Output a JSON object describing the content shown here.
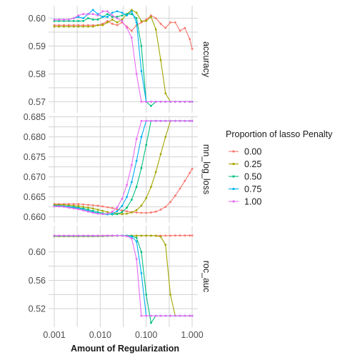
{
  "chart_data": {
    "type": "line",
    "xlabel": "Amount of Regularization",
    "x_scale": "log10",
    "x_ticks": [
      0.001,
      0.01,
      0.1,
      1.0
    ],
    "x_tick_labels": [
      "0.001",
      "0.010",
      "0.100",
      "1.000"
    ],
    "xlim": [
      0.001,
      1.0
    ],
    "grid": true,
    "legend": {
      "title": "Proportion of lasso Penalty",
      "position": "right",
      "entries": [
        "0.00",
        "0.25",
        "0.50",
        "0.75",
        "1.00"
      ]
    },
    "colors": [
      "#F8766D",
      "#A3A500",
      "#00BF7D",
      "#00B0F6",
      "#E76BF3"
    ],
    "x": [
      0.001,
      0.00127,
      0.00162,
      0.00207,
      0.00264,
      0.00336,
      0.00428,
      0.00546,
      0.00695,
      0.00886,
      0.01129,
      0.01438,
      0.01833,
      0.02336,
      0.02976,
      0.03793,
      0.04833,
      0.06158,
      0.07848,
      0.1,
      0.12743,
      0.16238,
      0.20691,
      0.26367,
      0.33598,
      0.42813,
      0.54556,
      0.69519,
      0.88587,
      1.0
    ],
    "panels": [
      {
        "strip": "accuracy",
        "ylim": [
          0.566,
          0.6045
        ],
        "y_ticks": [
          0.57,
          0.58,
          0.59,
          0.6
        ],
        "y_tick_labels": [
          "0.57",
          "0.58",
          "0.59",
          "0.60"
        ],
        "series": [
          {
            "name": "0.00",
            "values": [
              0.5975,
              0.5975,
              0.5975,
              0.5975,
              0.5975,
              0.5975,
              0.5975,
              0.5975,
              0.5975,
              0.5975,
              0.598,
              0.599,
              0.598,
              0.5975,
              0.5985,
              0.597,
              0.5955,
              0.5975,
              0.5985,
              0.5995,
              0.601,
              0.6,
              0.598,
              0.5965,
              0.5985,
              0.5985,
              0.5955,
              0.5965,
              0.5925,
              0.589
            ]
          },
          {
            "name": "0.25",
            "values": [
              0.597,
              0.597,
              0.597,
              0.597,
              0.597,
              0.597,
              0.597,
              0.597,
              0.597,
              0.5975,
              0.5975,
              0.5985,
              0.5995,
              0.5985,
              0.5995,
              0.6015,
              0.603,
              0.602,
              0.599,
              0.599,
              0.6005,
              0.596,
              0.585,
              0.573,
              0.57,
              0.57,
              0.57,
              0.57,
              0.57,
              0.57
            ]
          },
          {
            "name": "0.50",
            "values": [
              0.599,
              0.599,
              0.599,
              0.599,
              0.599,
              0.599,
              0.599,
              0.6,
              0.5995,
              0.5995,
              0.6005,
              0.6015,
              0.6005,
              0.6005,
              0.601,
              0.6015,
              0.6015,
              0.6,
              0.59,
              0.57,
              0.5685,
              0.57,
              0.57,
              0.57,
              0.57,
              0.57,
              0.57,
              0.57,
              0.57,
              0.57
            ]
          },
          {
            "name": "0.75",
            "values": [
              0.5995,
              0.5995,
              0.5995,
              0.5995,
              0.6,
              0.6005,
              0.6,
              0.6015,
              0.603,
              0.6015,
              0.6005,
              0.6005,
              0.602,
              0.6025,
              0.602,
              0.601,
              0.6025,
              0.5985,
              0.581,
              0.57,
              0.57,
              0.57,
              0.57,
              0.57,
              0.57,
              0.57,
              0.57,
              0.57,
              0.57,
              0.57
            ]
          },
          {
            "name": "1.00",
            "values": [
              0.5995,
              0.5995,
              0.5995,
              0.5995,
              0.6,
              0.601,
              0.6015,
              0.6015,
              0.6015,
              0.601,
              0.6025,
              0.6025,
              0.601,
              0.6,
              0.599,
              0.5965,
              0.593,
              0.58,
              0.57,
              0.57,
              0.57,
              0.57,
              0.57,
              0.57,
              0.57,
              0.57,
              0.57,
              0.57,
              0.57,
              0.57
            ]
          }
        ]
      },
      {
        "strip": "mn_log_loss",
        "ylim": [
          0.6585,
          0.6853
        ],
        "y_ticks": [
          0.66,
          0.665,
          0.67,
          0.675,
          0.68,
          0.685
        ],
        "y_tick_labels": [
          "0.660",
          "0.665",
          "0.670",
          "0.675",
          "0.680",
          "0.685"
        ],
        "series": [
          {
            "name": "0.00",
            "values": [
              0.6632,
              0.6632,
              0.6632,
              0.6632,
              0.6632,
              0.6632,
              0.6631,
              0.663,
              0.6629,
              0.6628,
              0.6626,
              0.6624,
              0.6622,
              0.6619,
              0.6616,
              0.6614,
              0.6612,
              0.6611,
              0.661,
              0.661,
              0.6611,
              0.6613,
              0.6618,
              0.6625,
              0.6637,
              0.6653,
              0.6671,
              0.669,
              0.671,
              0.672
            ]
          },
          {
            "name": "0.25",
            "values": [
              0.663,
              0.663,
              0.663,
              0.6629,
              0.6628,
              0.6627,
              0.6625,
              0.6623,
              0.6621,
              0.6618,
              0.6615,
              0.6612,
              0.661,
              0.6608,
              0.6607,
              0.6608,
              0.6611,
              0.6617,
              0.6628,
              0.6647,
              0.6675,
              0.6712,
              0.6757,
              0.68,
              0.684,
              0.684,
              0.684,
              0.684,
              0.684,
              0.684
            ]
          },
          {
            "name": "0.50",
            "values": [
              0.6628,
              0.6628,
              0.6627,
              0.6626,
              0.6625,
              0.6623,
              0.6621,
              0.6618,
              0.6615,
              0.6612,
              0.6609,
              0.6607,
              0.6606,
              0.6607,
              0.6612,
              0.6623,
              0.6643,
              0.6675,
              0.6722,
              0.678,
              0.684,
              0.684,
              0.684,
              0.684,
              0.684,
              0.684,
              0.684,
              0.684,
              0.684,
              0.684
            ]
          },
          {
            "name": "0.75",
            "values": [
              0.6627,
              0.6627,
              0.6626,
              0.6625,
              0.6623,
              0.6621,
              0.6618,
              0.6615,
              0.6612,
              0.6609,
              0.6607,
              0.6606,
              0.6608,
              0.6614,
              0.6627,
              0.665,
              0.6687,
              0.674,
              0.68,
              0.684,
              0.684,
              0.684,
              0.684,
              0.684,
              0.684,
              0.684,
              0.684,
              0.684,
              0.684,
              0.684
            ]
          },
          {
            "name": "1.00",
            "values": [
              0.6626,
              0.6626,
              0.6625,
              0.6623,
              0.6621,
              0.6619,
              0.6616,
              0.6613,
              0.661,
              0.6608,
              0.6607,
              0.6608,
              0.6613,
              0.6624,
              0.6645,
              0.668,
              0.673,
              0.6795,
              0.684,
              0.684,
              0.684,
              0.684,
              0.684,
              0.684,
              0.684,
              0.684,
              0.684,
              0.684,
              0.684,
              0.684
            ]
          }
        ]
      },
      {
        "strip": "roc_auc",
        "ylim": [
          0.494,
          0.637
        ],
        "y_ticks": [
          0.52,
          0.56,
          0.6
        ],
        "y_tick_labels": [
          "0.52",
          "0.56",
          "0.60"
        ],
        "series": [
          {
            "name": "0.00",
            "values": [
              0.623,
              0.623,
              0.623,
              0.623,
              0.623,
              0.623,
              0.623,
              0.623,
              0.623,
              0.623,
              0.623,
              0.623,
              0.623,
              0.623,
              0.623,
              0.623,
              0.623,
              0.623,
              0.623,
              0.623,
              0.623,
              0.623,
              0.623,
              0.623,
              0.623,
              0.6232,
              0.6232,
              0.6232,
              0.6232,
              0.6232
            ]
          },
          {
            "name": "0.25",
            "values": [
              0.622,
              0.622,
              0.622,
              0.622,
              0.622,
              0.622,
              0.622,
              0.622,
              0.622,
              0.6221,
              0.6222,
              0.6224,
              0.6226,
              0.6228,
              0.6229,
              0.623,
              0.623,
              0.623,
              0.623,
              0.6231,
              0.623,
              0.6228,
              0.6215,
              0.61,
              0.54,
              0.51,
              0.51,
              0.51,
              0.51,
              0.51
            ]
          },
          {
            "name": "0.50",
            "values": [
              0.6225,
              0.6225,
              0.6225,
              0.6225,
              0.6225,
              0.6225,
              0.6225,
              0.6225,
              0.6225,
              0.6226,
              0.6227,
              0.6228,
              0.6229,
              0.623,
              0.623,
              0.623,
              0.6225,
              0.62,
              0.6,
              0.54,
              0.5,
              0.51,
              0.51,
              0.51,
              0.51,
              0.51,
              0.51,
              0.51,
              0.51,
              0.51
            ]
          },
          {
            "name": "0.75",
            "values": [
              0.6228,
              0.6228,
              0.6228,
              0.6228,
              0.6228,
              0.6228,
              0.6228,
              0.6228,
              0.6228,
              0.6228,
              0.6229,
              0.623,
              0.623,
              0.6231,
              0.623,
              0.6228,
              0.6215,
              0.615,
              0.57,
              0.51,
              0.51,
              0.51,
              0.51,
              0.51,
              0.51,
              0.51,
              0.51,
              0.51,
              0.51,
              0.51
            ]
          },
          {
            "name": "1.00",
            "values": [
              0.623,
              0.623,
              0.623,
              0.623,
              0.623,
              0.623,
              0.623,
              0.623,
              0.623,
              0.623,
              0.623,
              0.6231,
              0.6231,
              0.623,
              0.6229,
              0.6222,
              0.619,
              0.59,
              0.51,
              0.51,
              0.51,
              0.51,
              0.51,
              0.51,
              0.51,
              0.51,
              0.51,
              0.51,
              0.51,
              0.51
            ]
          }
        ]
      }
    ]
  }
}
